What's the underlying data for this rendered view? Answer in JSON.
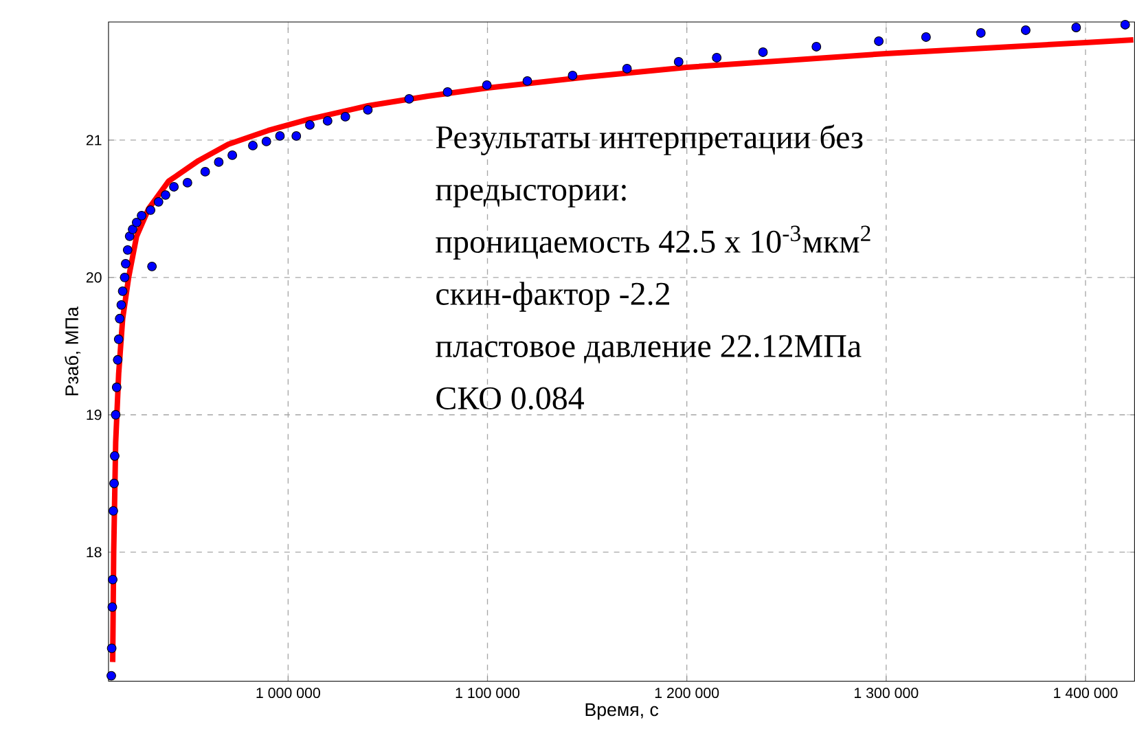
{
  "chart_data": {
    "type": "scatter",
    "xlabel": "Время, с",
    "ylabel": "Рзаб, МПа",
    "xlim": [
      909900,
      1424600
    ],
    "ylim": [
      17.06,
      21.86
    ],
    "xticks": [
      {
        "value": 1000000,
        "label": "1 000 000"
      },
      {
        "value": 1100000,
        "label": "1 100 000"
      },
      {
        "value": 1200000,
        "label": "1 200 000"
      },
      {
        "value": 1300000,
        "label": "1 300 000"
      },
      {
        "value": 1400000,
        "label": "1 400 000"
      }
    ],
    "yticks": [
      18,
      19,
      20,
      21
    ],
    "grid": true,
    "series": [
      {
        "marker": "circle",
        "color": "#0000ff",
        "x": [
          911300,
          911500,
          911800,
          912000,
          912300,
          912700,
          913000,
          913500,
          914000,
          914500,
          915000,
          915500,
          916300,
          917000,
          918000,
          918500,
          919500,
          920500,
          922000,
          924000,
          926500,
          931700,
          931000,
          935000,
          938500,
          942700,
          949500,
          958400,
          965200,
          972000,
          982300,
          989100,
          995900,
          1004100,
          1010900,
          1019800,
          1028700,
          1040000,
          1060700,
          1080000,
          1099700,
          1120000,
          1142700,
          1170000,
          1195900,
          1215000,
          1238200,
          1265000,
          1296300,
          1320000,
          1347500,
          1370000,
          1395300,
          1419900
        ],
        "values": [
          17.1,
          17.3,
          17.6,
          17.8,
          18.3,
          18.5,
          18.7,
          19.0,
          19.2,
          19.4,
          19.55,
          19.7,
          19.8,
          19.9,
          20.0,
          20.1,
          20.2,
          20.3,
          20.35,
          20.4,
          20.45,
          20.08,
          20.49,
          20.55,
          20.6,
          20.66,
          20.69,
          20.77,
          20.84,
          20.89,
          20.96,
          20.99,
          21.03,
          21.03,
          21.11,
          21.14,
          21.17,
          21.22,
          21.3,
          21.35,
          21.4,
          21.43,
          21.47,
          21.52,
          21.57,
          21.6,
          21.64,
          21.68,
          21.72,
          21.75,
          21.78,
          21.8,
          21.82,
          21.84
        ]
      },
      {
        "type": "line",
        "marker": "none",
        "color": "#ff0000",
        "x": [
          912000,
          912500,
          913500,
          915000,
          917000,
          920000,
          924000,
          930000,
          940000,
          955000,
          970000,
          990000,
          1010000,
          1040000,
          1070000,
          1100000,
          1150000,
          1200000,
          1250000,
          1300000,
          1350000,
          1400000,
          1424000
        ],
        "values": [
          17.2,
          18.0,
          18.8,
          19.3,
          19.7,
          20.0,
          20.3,
          20.5,
          20.7,
          20.85,
          20.97,
          21.07,
          21.15,
          21.25,
          21.32,
          21.38,
          21.46,
          21.53,
          21.58,
          21.63,
          21.67,
          21.71,
          21.73
        ]
      }
    ],
    "annotations": [
      "Результаты интерпретации без",
      "предыстории:",
      "проницаемость 42.5 x 10$^{-3}$мкм$^{2}$",
      "скин-фактор -2.2",
      "пластовое давление 22.12МПа",
      "СКО 0.084"
    ]
  }
}
